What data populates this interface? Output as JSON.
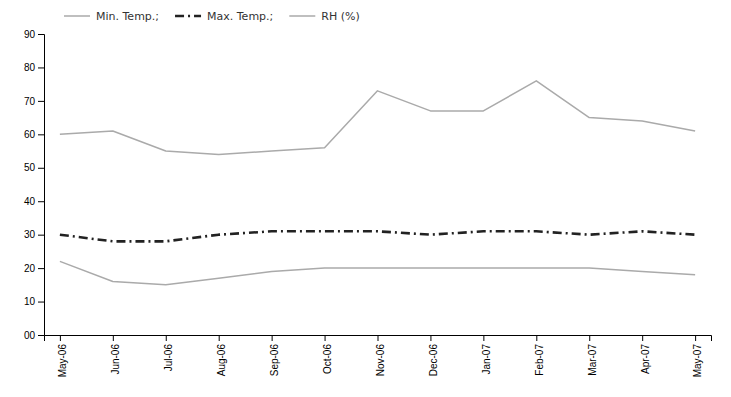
{
  "chart_data": {
    "type": "line",
    "categories": [
      "May-06",
      "Jun-06",
      "Jul-06",
      "Aug-06",
      "Sep-06",
      "Oct-06",
      "Nov-06",
      "Dec-06",
      "Jan-07",
      "Feb-07",
      "Mar-07",
      "Apr-07",
      "May-07"
    ],
    "series": [
      {
        "name": "Min. Temp.;",
        "color": "#aaaaaa",
        "line_style": "solid",
        "values": [
          22,
          16,
          15,
          17,
          19,
          20,
          20,
          20,
          20,
          20,
          20,
          19,
          18
        ]
      },
      {
        "name": "Max. Temp.;",
        "color": "#222222",
        "line_style": "dashdot",
        "values": [
          30,
          28,
          28,
          30,
          31,
          31,
          31,
          30,
          31,
          31,
          30,
          31,
          30
        ]
      },
      {
        "name": "RH (%)",
        "color": "#aaaaaa",
        "line_style": "solid",
        "values": [
          60,
          61,
          55,
          54,
          55,
          56,
          73,
          67,
          67,
          76,
          65,
          64,
          61
        ]
      }
    ],
    "ylim": [
      0,
      90
    ],
    "yticks": [
      {
        "value": 0,
        "label": "00"
      },
      10,
      20,
      30,
      40,
      50,
      60,
      70,
      80,
      90
    ],
    "grid": false,
    "legend": "upper left"
  }
}
